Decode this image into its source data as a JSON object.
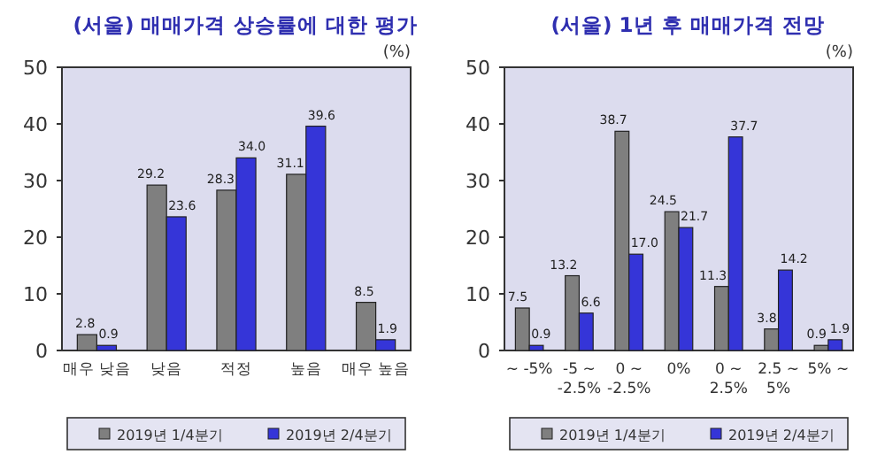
{
  "chart_data": [
    {
      "type": "bar",
      "title": "(서울) 매매가격 상승률에 대한 평가",
      "annotations": [
        "(%)"
      ],
      "categories": [
        "매우 낮음",
        "낮음",
        "적정",
        "높음",
        "매우 높음"
      ],
      "series": [
        {
          "name": "2019년 1/4분기",
          "color": "#7f7f7f",
          "values": [
            2.8,
            29.2,
            28.3,
            31.1,
            8.5
          ],
          "value_labels": [
            "2.8",
            "29.2",
            "28.3",
            "31.1",
            "8.5"
          ]
        },
        {
          "name": "2019년 2/4분기",
          "color": "#3535d8",
          "values": [
            0.9,
            23.6,
            34.0,
            39.6,
            1.9
          ],
          "value_labels": [
            "0.9",
            "23.6",
            "34.0",
            "39.6",
            "1.9"
          ]
        }
      ],
      "ylim": [
        0,
        50
      ],
      "yticks": [
        0,
        10,
        20,
        30,
        40,
        50
      ],
      "grid": false,
      "legend": "bottom"
    },
    {
      "type": "bar",
      "title": "(서울) 1년 후 매매가격 전망",
      "annotations": [
        "(%)"
      ],
      "categories": [
        "~ -5%",
        "-5 ~\n-2.5%",
        "0 ~\n-2.5%",
        "0%",
        "0 ~\n2.5%",
        "2.5 ~\n5%",
        "5% ~"
      ],
      "series": [
        {
          "name": "2019년 1/4분기",
          "color": "#7f7f7f",
          "values": [
            7.5,
            13.2,
            38.7,
            24.5,
            11.3,
            3.8,
            0.9
          ],
          "value_labels": [
            "7.5",
            "13.2",
            "38.7",
            "24.5",
            "11.3",
            "3.8",
            "0.9"
          ]
        },
        {
          "name": "2019년 2/4분기",
          "color": "#3535d8",
          "values": [
            0.9,
            6.6,
            17.0,
            21.7,
            37.7,
            14.2,
            1.9
          ],
          "value_labels": [
            "0.9",
            "6.6",
            "17.0",
            "21.7",
            "37.7",
            "14.2",
            "1.9"
          ]
        }
      ],
      "ylim": [
        0,
        50
      ],
      "yticks": [
        0,
        10,
        20,
        30,
        40,
        50
      ],
      "grid": false,
      "legend": "bottom"
    }
  ]
}
